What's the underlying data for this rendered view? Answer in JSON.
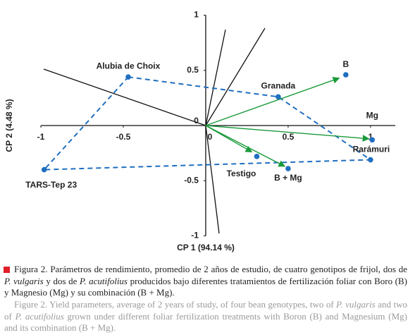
{
  "chart_data": {
    "type": "biplot",
    "xlabel": "CP 1 (94.14 %)",
    "ylabel": "CP 2 (4.48 %)",
    "xlim": [
      -1,
      1.15
    ],
    "ylim": [
      -1,
      1
    ],
    "xticks": [
      -1,
      -0.5,
      0,
      0.5,
      1
    ],
    "yticks": [
      1,
      0.5,
      0,
      -0.5,
      -1
    ],
    "genotypes": {
      "color": "#1f6fc0",
      "dashed_outline": true,
      "labels": [
        "Alubia de Choix",
        "Granada",
        "Rarámuri",
        "TARS-Tep 23"
      ],
      "x": [
        -0.47,
        0.44,
        1.0,
        -0.98
      ],
      "y": [
        0.44,
        0.26,
        -0.31,
        -0.4
      ]
    },
    "treatments": {
      "color": "#1f6fc0",
      "arrow_color": "#1a9a3a",
      "labels": [
        "B",
        "Mg",
        "Testigo",
        "B + Mg"
      ],
      "x": [
        0.85,
        1.01,
        0.31,
        0.5
      ],
      "y": [
        0.46,
        -0.13,
        -0.28,
        -0.39
      ],
      "arrow_x": [
        0.81,
        0.99,
        0.28,
        0.48
      ],
      "arrow_y": [
        0.43,
        -0.12,
        -0.24,
        -0.37
      ]
    }
  },
  "caption": {
    "es": [
      "Figura 2. Parámetros de rendimiento, promedio de 2 años de estudio, de cuatro genotipos de frijol, dos de ",
      "P. vulgaris",
      " y dos de ",
      "P. acutifolius",
      " producidos bajo diferentes tratamientos de fertilización foliar con Boro (B) y Magnesio (Mg) y su combinación (B + Mg)."
    ],
    "en": [
      "Figure 2. Yield parameters, average of 2 years of study, of four bean genotypes, two of ",
      "P. vulgaris",
      " and two of ",
      "P. acutifolius",
      " grown under different foliar fertilization treatments with Boron (B) and Magnesium (Mg) and its combination (B + Mg)."
    ]
  }
}
